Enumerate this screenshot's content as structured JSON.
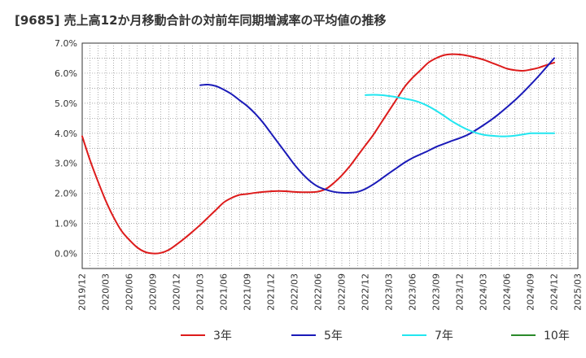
{
  "chart_data": {
    "type": "line",
    "title": "[9685]  売上高12か月移動合計の対前年同期増減率の平均値の推移",
    "xlabel": "",
    "ylabel": "",
    "ylim": [
      -0.5,
      7.0
    ],
    "yticks": [
      0.0,
      1.0,
      2.0,
      3.0,
      4.0,
      5.0,
      6.0,
      7.0
    ],
    "ytick_labels": [
      "0.0%",
      "1.0%",
      "2.0%",
      "3.0%",
      "4.0%",
      "5.0%",
      "6.0%",
      "7.0%"
    ],
    "xticks": [
      "2019/12",
      "2020/03",
      "2020/06",
      "2020/09",
      "2020/12",
      "2021/03",
      "2021/06",
      "2021/09",
      "2021/12",
      "2022/03",
      "2022/06",
      "2022/09",
      "2022/12",
      "2023/03",
      "2023/06",
      "2023/09",
      "2023/12",
      "2024/03",
      "2024/06",
      "2024/09",
      "2024/12",
      "2025/03"
    ],
    "grid": true,
    "legend_position": "bottom",
    "series": [
      {
        "name": "3年",
        "color": "#dd1b1b",
        "x": [
          "2019/12",
          "2020/01",
          "2020/02",
          "2020/03",
          "2020/04",
          "2020/05",
          "2020/06",
          "2020/07",
          "2020/08",
          "2020/09",
          "2020/10",
          "2020/11",
          "2020/12",
          "2021/01",
          "2021/02",
          "2021/03",
          "2021/04",
          "2021/05",
          "2021/06",
          "2021/07",
          "2021/08",
          "2021/09",
          "2021/10",
          "2021/11",
          "2021/12",
          "2022/01",
          "2022/02",
          "2022/03",
          "2022/04",
          "2022/05",
          "2022/06",
          "2022/07",
          "2022/08",
          "2022/09",
          "2022/10",
          "2022/11",
          "2022/12",
          "2023/01",
          "2023/02",
          "2023/03",
          "2023/04",
          "2023/05",
          "2023/06",
          "2023/07",
          "2023/08",
          "2023/09",
          "2023/10",
          "2023/11",
          "2023/12",
          "2024/01",
          "2024/02",
          "2024/03",
          "2024/04",
          "2024/05",
          "2024/06",
          "2024/07",
          "2024/08",
          "2024/09",
          "2024/10",
          "2024/11",
          "2024/12"
        ],
        "values": [
          3.9,
          3.1,
          2.4,
          1.75,
          1.2,
          0.75,
          0.45,
          0.2,
          0.05,
          0.0,
          0.02,
          0.12,
          0.3,
          0.5,
          0.72,
          0.95,
          1.2,
          1.45,
          1.7,
          1.85,
          1.95,
          1.98,
          2.02,
          2.05,
          2.07,
          2.08,
          2.07,
          2.05,
          2.04,
          2.04,
          2.06,
          2.15,
          2.35,
          2.6,
          2.9,
          3.25,
          3.6,
          3.95,
          4.35,
          4.75,
          5.15,
          5.55,
          5.85,
          6.1,
          6.35,
          6.5,
          6.6,
          6.63,
          6.62,
          6.58,
          6.52,
          6.45,
          6.35,
          6.25,
          6.15,
          6.1,
          6.08,
          6.12,
          6.18,
          6.27,
          6.35
        ]
      },
      {
        "name": "5年",
        "color": "#1a1ab8",
        "x": [
          "2021/03",
          "2021/04",
          "2021/05",
          "2021/06",
          "2021/07",
          "2021/08",
          "2021/09",
          "2021/10",
          "2021/11",
          "2021/12",
          "2022/01",
          "2022/02",
          "2022/03",
          "2022/04",
          "2022/05",
          "2022/06",
          "2022/07",
          "2022/08",
          "2022/09",
          "2022/10",
          "2022/11",
          "2022/12",
          "2023/01",
          "2023/02",
          "2023/03",
          "2023/04",
          "2023/05",
          "2023/06",
          "2023/07",
          "2023/08",
          "2023/09",
          "2023/10",
          "2023/11",
          "2023/12",
          "2024/01",
          "2024/02",
          "2024/03",
          "2024/04",
          "2024/05",
          "2024/06",
          "2024/07",
          "2024/08",
          "2024/09",
          "2024/10",
          "2024/11",
          "2024/12"
        ],
        "values": [
          5.6,
          5.62,
          5.57,
          5.45,
          5.3,
          5.1,
          4.9,
          4.65,
          4.35,
          4.0,
          3.65,
          3.3,
          2.95,
          2.65,
          2.4,
          2.22,
          2.12,
          2.05,
          2.02,
          2.02,
          2.05,
          2.15,
          2.3,
          2.48,
          2.67,
          2.85,
          3.03,
          3.18,
          3.3,
          3.42,
          3.55,
          3.65,
          3.75,
          3.84,
          3.95,
          4.1,
          4.27,
          4.45,
          4.65,
          4.87,
          5.1,
          5.35,
          5.62,
          5.9,
          6.2,
          6.5
        ]
      },
      {
        "name": "7年",
        "color": "#22e6f0",
        "x": [
          "2022/12",
          "2023/01",
          "2023/02",
          "2023/03",
          "2023/04",
          "2023/05",
          "2023/06",
          "2023/07",
          "2023/08",
          "2023/09",
          "2023/10",
          "2023/11",
          "2023/12",
          "2024/01",
          "2024/02",
          "2024/03",
          "2024/04",
          "2024/05",
          "2024/06",
          "2024/07",
          "2024/08",
          "2024/09",
          "2024/10",
          "2024/11",
          "2024/12"
        ],
        "values": [
          5.27,
          5.28,
          5.27,
          5.24,
          5.2,
          5.15,
          5.1,
          5.02,
          4.9,
          4.75,
          4.58,
          4.4,
          4.25,
          4.12,
          4.02,
          3.95,
          3.92,
          3.9,
          3.9,
          3.92,
          3.96,
          4.0,
          4.0,
          4.0,
          4.0
        ]
      },
      {
        "name": "10年",
        "color": "#2a8a2a",
        "x": [],
        "values": []
      }
    ]
  }
}
